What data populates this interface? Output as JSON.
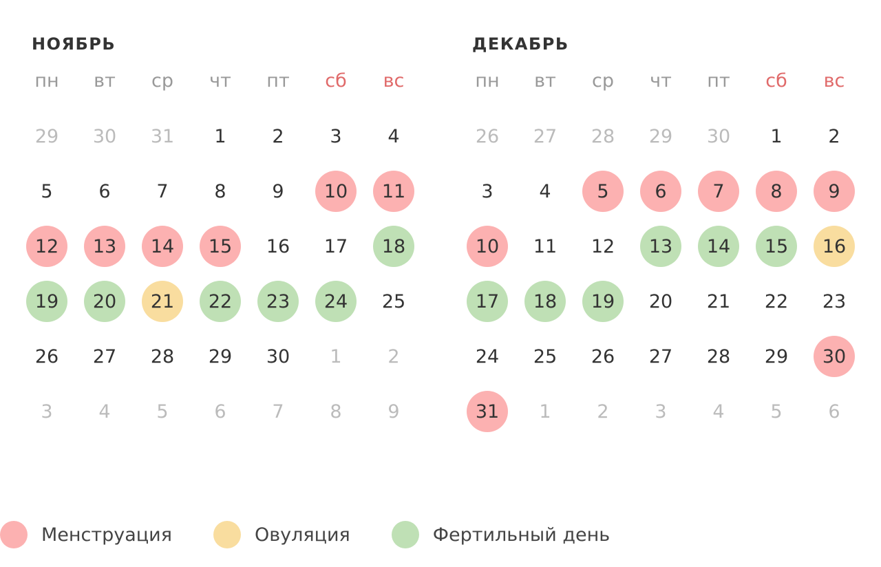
{
  "colors": {
    "menstruation": "#fcb1b1",
    "ovulation": "#f9dd9f",
    "fertile": "#bfe0b5",
    "weekend_text": "#e06a6a",
    "muted_text": "#bbbbbb",
    "text": "#333333"
  },
  "weekdays": [
    {
      "label": "пн",
      "weekend": false
    },
    {
      "label": "вт",
      "weekend": false
    },
    {
      "label": "ср",
      "weekend": false
    },
    {
      "label": "чт",
      "weekend": false
    },
    {
      "label": "пт",
      "weekend": false
    },
    {
      "label": "сб",
      "weekend": true
    },
    {
      "label": "вс",
      "weekend": true
    }
  ],
  "months": [
    {
      "title": "НОЯБРЬ",
      "weeks": [
        [
          {
            "d": "29",
            "s": "out"
          },
          {
            "d": "30",
            "s": "out"
          },
          {
            "d": "31",
            "s": "out"
          },
          {
            "d": "1"
          },
          {
            "d": "2"
          },
          {
            "d": "3"
          },
          {
            "d": "4"
          }
        ],
        [
          {
            "d": "5"
          },
          {
            "d": "6"
          },
          {
            "d": "7"
          },
          {
            "d": "8"
          },
          {
            "d": "9"
          },
          {
            "d": "10",
            "s": "menstruation"
          },
          {
            "d": "11",
            "s": "menstruation"
          }
        ],
        [
          {
            "d": "12",
            "s": "menstruation"
          },
          {
            "d": "13",
            "s": "menstruation"
          },
          {
            "d": "14",
            "s": "menstruation"
          },
          {
            "d": "15",
            "s": "menstruation"
          },
          {
            "d": "16"
          },
          {
            "d": "17"
          },
          {
            "d": "18",
            "s": "fertile"
          }
        ],
        [
          {
            "d": "19",
            "s": "fertile"
          },
          {
            "d": "20",
            "s": "fertile"
          },
          {
            "d": "21",
            "s": "ovulation"
          },
          {
            "d": "22",
            "s": "fertile"
          },
          {
            "d": "23",
            "s": "fertile"
          },
          {
            "d": "24",
            "s": "fertile"
          },
          {
            "d": "25"
          }
        ],
        [
          {
            "d": "26"
          },
          {
            "d": "27"
          },
          {
            "d": "28"
          },
          {
            "d": "29"
          },
          {
            "d": "30"
          },
          {
            "d": "1",
            "s": "out"
          },
          {
            "d": "2",
            "s": "out"
          }
        ],
        [
          {
            "d": "3",
            "s": "out"
          },
          {
            "d": "4",
            "s": "out"
          },
          {
            "d": "5",
            "s": "out"
          },
          {
            "d": "6",
            "s": "out"
          },
          {
            "d": "7",
            "s": "out"
          },
          {
            "d": "8",
            "s": "out"
          },
          {
            "d": "9",
            "s": "out"
          }
        ]
      ]
    },
    {
      "title": "ДЕКАБРЬ",
      "weeks": [
        [
          {
            "d": "26",
            "s": "out"
          },
          {
            "d": "27",
            "s": "out"
          },
          {
            "d": "28",
            "s": "out"
          },
          {
            "d": "29",
            "s": "out"
          },
          {
            "d": "30",
            "s": "out"
          },
          {
            "d": "1"
          },
          {
            "d": "2"
          }
        ],
        [
          {
            "d": "3"
          },
          {
            "d": "4"
          },
          {
            "d": "5",
            "s": "menstruation"
          },
          {
            "d": "6",
            "s": "menstruation"
          },
          {
            "d": "7",
            "s": "menstruation"
          },
          {
            "d": "8",
            "s": "menstruation"
          },
          {
            "d": "9",
            "s": "menstruation"
          }
        ],
        [
          {
            "d": "10",
            "s": "menstruation"
          },
          {
            "d": "11"
          },
          {
            "d": "12"
          },
          {
            "d": "13",
            "s": "fertile"
          },
          {
            "d": "14",
            "s": "fertile"
          },
          {
            "d": "15",
            "s": "fertile"
          },
          {
            "d": "16",
            "s": "ovulation"
          }
        ],
        [
          {
            "d": "17",
            "s": "fertile"
          },
          {
            "d": "18",
            "s": "fertile"
          },
          {
            "d": "19",
            "s": "fertile"
          },
          {
            "d": "20"
          },
          {
            "d": "21"
          },
          {
            "d": "22"
          },
          {
            "d": "23"
          }
        ],
        [
          {
            "d": "24"
          },
          {
            "d": "25"
          },
          {
            "d": "26"
          },
          {
            "d": "27"
          },
          {
            "d": "28"
          },
          {
            "d": "29"
          },
          {
            "d": "30",
            "s": "menstruation"
          }
        ],
        [
          {
            "d": "31",
            "s": "menstruation"
          },
          {
            "d": "1",
            "s": "out"
          },
          {
            "d": "2",
            "s": "out"
          },
          {
            "d": "3",
            "s": "out"
          },
          {
            "d": "4",
            "s": "out"
          },
          {
            "d": "5",
            "s": "out"
          },
          {
            "d": "6",
            "s": "out"
          }
        ]
      ]
    }
  ],
  "legend": [
    {
      "key": "menstruation",
      "label": "Менструация"
    },
    {
      "key": "ovulation",
      "label": "Овуляция"
    },
    {
      "key": "fertile",
      "label": "Фертильный день"
    }
  ]
}
